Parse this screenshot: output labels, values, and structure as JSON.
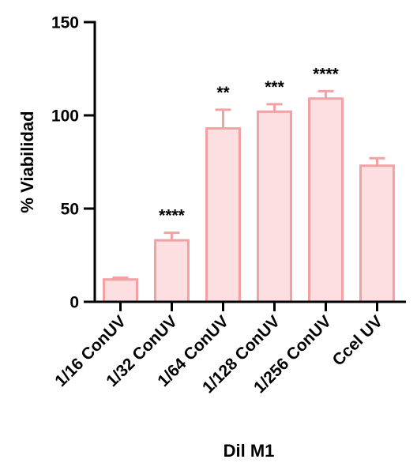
{
  "chart_data": {
    "type": "bar",
    "title": "",
    "xlabel": "Dil M1",
    "ylabel": "% Viabilidad",
    "ylim": [
      0,
      150
    ],
    "yticks": [
      "0",
      "50",
      "100",
      "150"
    ],
    "ytick_values": [
      0,
      50,
      100,
      150
    ],
    "categories": [
      "1/16 ConUV",
      "1/32 ConUV",
      "1/64 ConUV",
      "1/128 ConUV",
      "1/256 ConUV",
      "Ccel UV"
    ],
    "values": [
      12,
      33,
      93,
      102,
      109,
      73
    ],
    "error_upper": [
      13,
      37,
      103,
      106,
      113,
      77
    ],
    "significance": [
      "",
      "****",
      "**",
      "***",
      "****",
      ""
    ],
    "grid": false,
    "legend": "none",
    "colors": {
      "bar_fill": "#fddfe1",
      "bar_stroke": "#f4a1a4",
      "axis": "#000000",
      "text": "#000000"
    }
  }
}
